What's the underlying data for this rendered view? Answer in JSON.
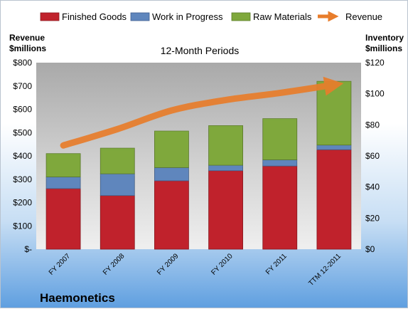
{
  "chart_data": {
    "type": "bar",
    "stacked": true,
    "title": "12-Month Periods",
    "company": "Haemonetics",
    "categories": [
      "FY 2007",
      "FY 2008",
      "FY 2009",
      "FY 2010",
      "FY 2011",
      "TTM 12-2011"
    ],
    "series": [
      {
        "name": "Finished Goods",
        "axis": "right",
        "color": "#c0222c",
        "values": [
          39,
          34.5,
          44,
          50.5,
          53.5,
          64
        ]
      },
      {
        "name": "Work in Progress",
        "axis": "right",
        "color": "#5f86bd",
        "values": [
          7.5,
          14,
          8.5,
          3.5,
          4,
          3
        ]
      },
      {
        "name": "Raw Materials",
        "axis": "right",
        "color": "#7fa83c",
        "values": [
          15,
          16.5,
          23.5,
          25.5,
          26.5,
          41
        ]
      },
      {
        "name": "Revenue",
        "type": "line",
        "axis": "left",
        "color": "#e87d2b",
        "values": [
          445,
          515,
          595,
          640,
          670,
          705
        ]
      }
    ],
    "left_axis": {
      "label_line1": "Revenue",
      "label_line2": "$millions",
      "ylim": [
        0,
        800
      ],
      "ticks": [
        "$-",
        "$100",
        "$200",
        "$300",
        "$400",
        "$500",
        "$600",
        "$700",
        "$800"
      ]
    },
    "right_axis": {
      "label_line1": "Inventory",
      "label_line2": "$millions",
      "ylim": [
        0,
        120
      ],
      "ticks": [
        "$0",
        "$20",
        "$40",
        "$60",
        "$80",
        "$100",
        "$120"
      ]
    },
    "legend_position": "top",
    "grid": false
  }
}
